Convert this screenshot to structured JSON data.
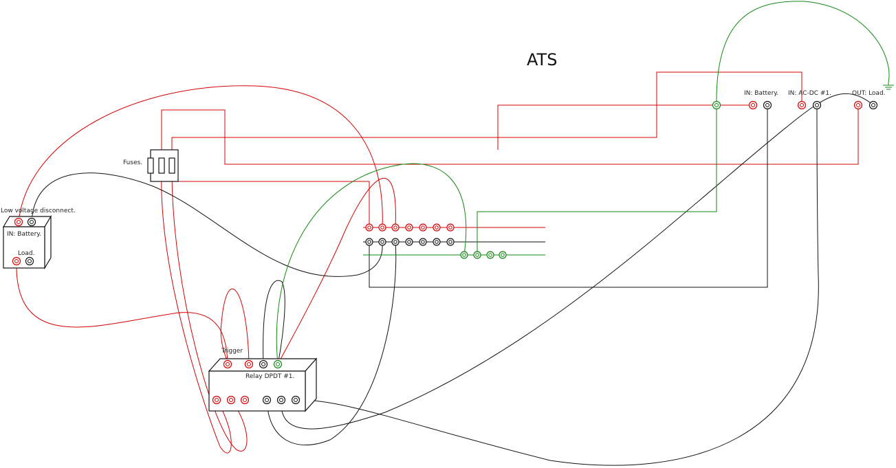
{
  "diagram": {
    "title": "ATS",
    "labels": {
      "low_voltage_disconnect": "Low voltage disconnect.",
      "lvd_in_battery": "IN: Battery.",
      "lvd_load": "Load.",
      "fuses": "Fuses.",
      "trigger": "Trigger",
      "relay": "Relay DPDT #1.",
      "ats_in_battery": "IN: Battery.",
      "ats_in_acdc": "IN: AC-DC #1.",
      "ats_out_load": "OUT: Load."
    },
    "colors": {
      "positive": "#d40000",
      "negative": "#111111",
      "ground": "#118811"
    }
  }
}
